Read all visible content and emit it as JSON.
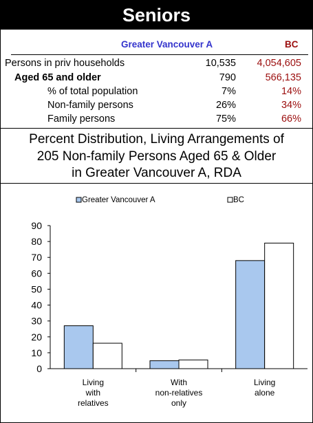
{
  "header": {
    "title": "Seniors"
  },
  "stats": {
    "columns": [
      "Greater Vancouver A",
      "BC"
    ],
    "rows": [
      {
        "label": "Persons in priv households",
        "ca": "10,535",
        "bc": "4,054,605"
      },
      {
        "label": "Aged 65 and older",
        "ca": "790",
        "bc": "566,135"
      },
      {
        "label": "% of total population",
        "ca": "7%",
        "bc": "14%"
      },
      {
        "label": "Non-family persons",
        "ca": "26%",
        "bc": "34%"
      },
      {
        "label": "Family persons",
        "ca": "75%",
        "bc": "66%"
      }
    ]
  },
  "caption": {
    "line1": "Percent Distribution, Living Arrangements of",
    "line2": "205 Non-family Persons Aged 65 & Older",
    "line3": "in Greater Vancouver A, RDA"
  },
  "chart_data": {
    "type": "bar",
    "categories": [
      [
        "Living",
        "with",
        "relatives"
      ],
      [
        "With",
        "non-relatives",
        "only"
      ],
      [
        "Living",
        "alone"
      ]
    ],
    "series": [
      {
        "name": "Greater Vancouver A",
        "values": [
          27,
          5,
          68
        ],
        "color": "#a9c8ee"
      },
      {
        "name": "BC",
        "values": [
          16,
          5.5,
          79
        ],
        "color": "#ffffff"
      }
    ],
    "ylim": [
      0,
      90
    ],
    "yticks": [
      "0",
      "10",
      "20",
      "30",
      "40",
      "50",
      "60",
      "70",
      "80",
      "90"
    ],
    "legend": "top",
    "grid": false
  }
}
